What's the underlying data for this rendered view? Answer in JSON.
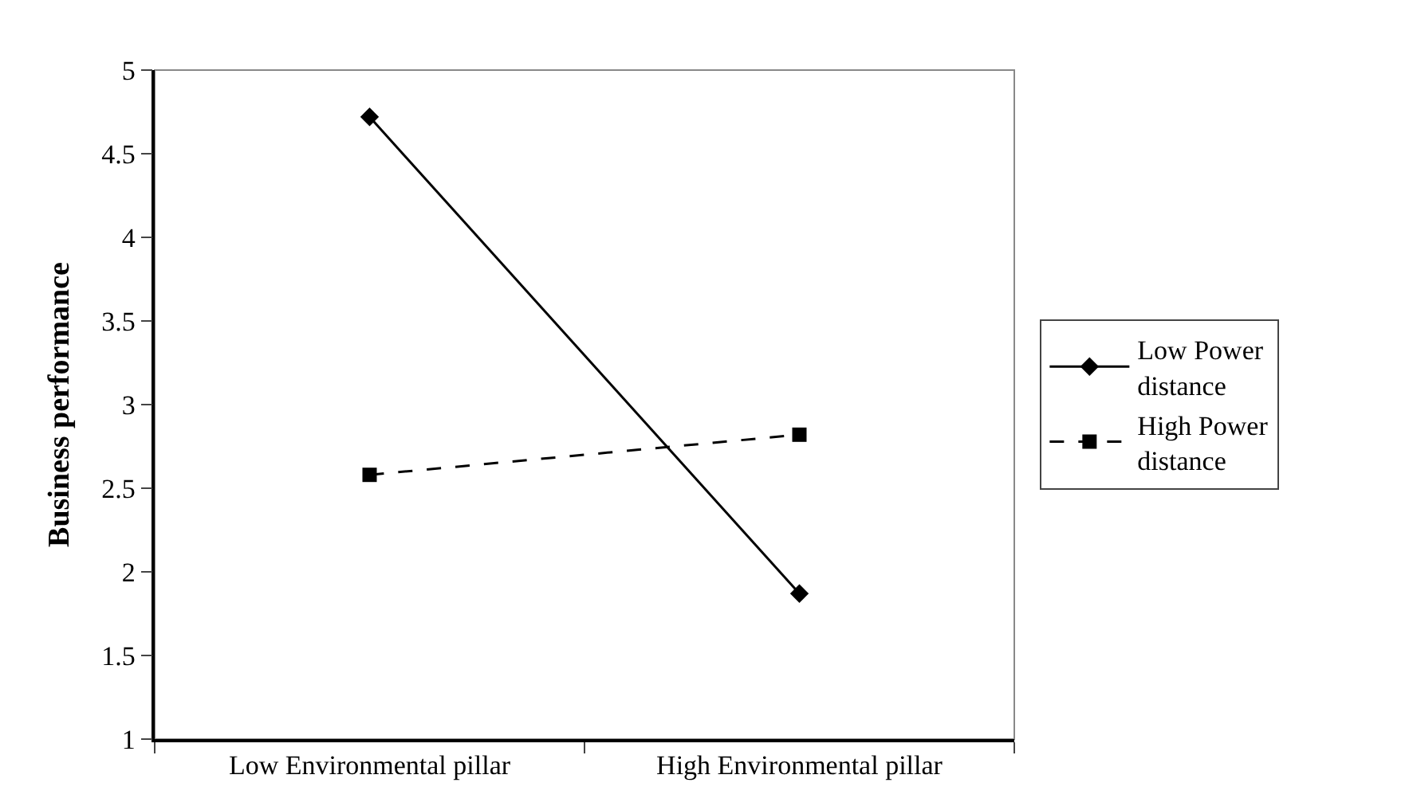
{
  "chart_data": {
    "type": "line",
    "ylabel": "Business performance",
    "categories": [
      "Low Environmental pillar",
      "High Environmental pillar"
    ],
    "series": [
      {
        "name": "Low Power distance",
        "color": "#000000",
        "values": [
          4.72,
          1.87
        ],
        "marker": "diamond",
        "line_style": "solid"
      },
      {
        "name": "High Power distance",
        "color": "#000000",
        "values": [
          2.58,
          2.82
        ],
        "marker": "square",
        "line_style": "dashed"
      }
    ],
    "ylim": [
      1,
      5
    ],
    "yticks": [
      1,
      1.5,
      2,
      2.5,
      3,
      3.5,
      4,
      4.5,
      5
    ],
    "grid": false,
    "legend": "right"
  }
}
